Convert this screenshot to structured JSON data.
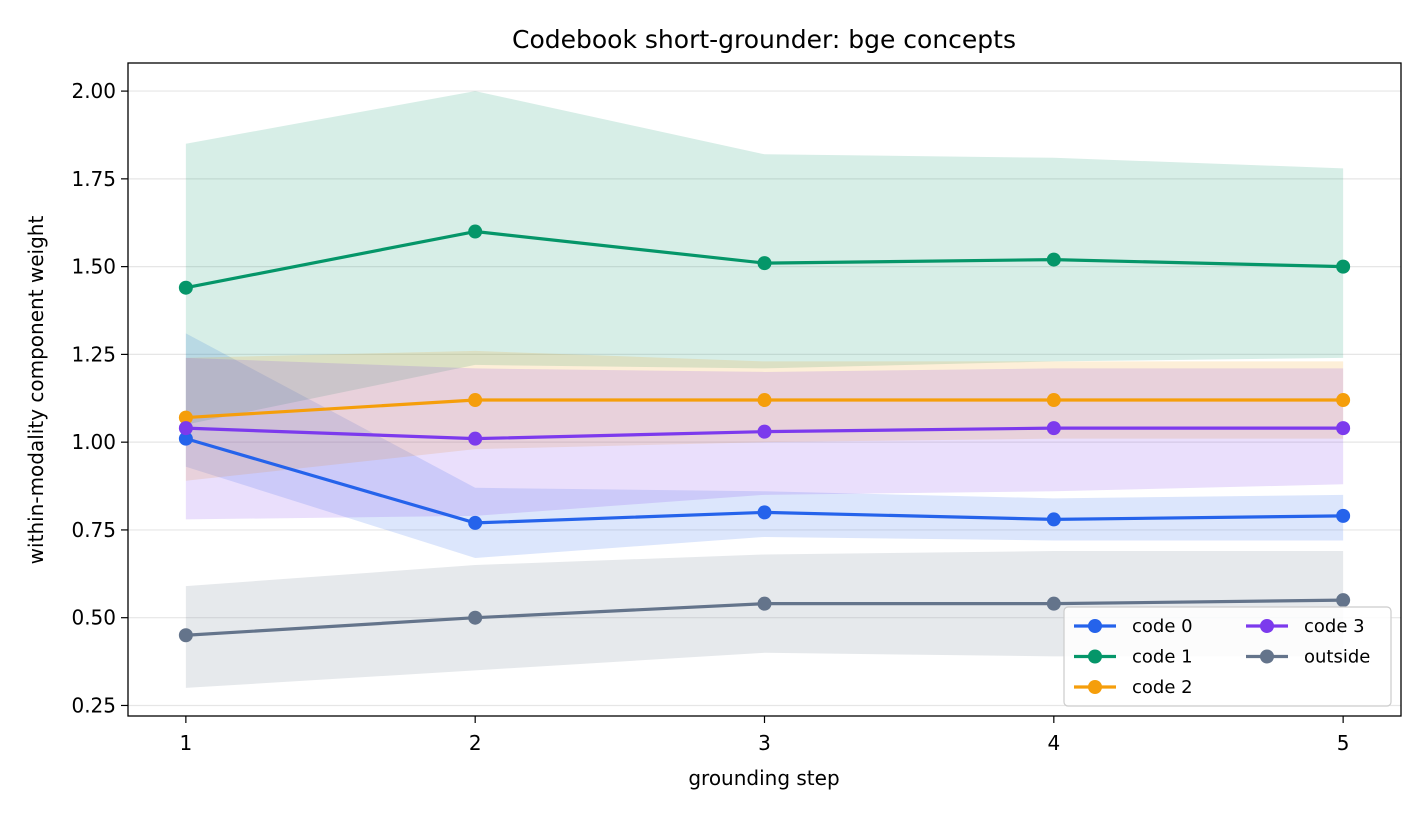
{
  "chart_data": {
    "type": "line",
    "title": "Codebook short-grounder: bge concepts",
    "xlabel": "grounding step",
    "ylabel": "within-modality component weight",
    "x": [
      1,
      2,
      3,
      4,
      5
    ],
    "x_ticks": [
      "1",
      "2",
      "3",
      "4",
      "5"
    ],
    "y_ticks": [
      "0.25",
      "0.50",
      "0.75",
      "1.00",
      "1.25",
      "1.50",
      "1.75",
      "2.00"
    ],
    "ylim": [
      0.22,
      2.08
    ],
    "xlim": [
      0.8,
      5.2
    ],
    "grid": "horizontal",
    "legend": {
      "placement": "lower-right",
      "columns": 2
    },
    "series": [
      {
        "name": "code 0",
        "color": "#2563eb",
        "values": [
          1.01,
          0.77,
          0.8,
          0.78,
          0.79
        ],
        "band_low": [
          0.93,
          0.67,
          0.73,
          0.72,
          0.72
        ],
        "band_high": [
          1.31,
          0.87,
          0.86,
          0.84,
          0.85
        ]
      },
      {
        "name": "code 1",
        "color": "#059669",
        "values": [
          1.44,
          1.6,
          1.51,
          1.52,
          1.5
        ],
        "band_low": [
          1.05,
          1.22,
          1.21,
          1.23,
          1.24
        ],
        "band_high": [
          1.85,
          2.0,
          1.82,
          1.81,
          1.78
        ]
      },
      {
        "name": "code 2",
        "color": "#f59e0b",
        "values": [
          1.07,
          1.12,
          1.12,
          1.12,
          1.12
        ],
        "band_low": [
          0.89,
          0.98,
          1.0,
          1.01,
          1.01
        ],
        "band_high": [
          1.24,
          1.26,
          1.23,
          1.23,
          1.23
        ]
      },
      {
        "name": "code 3",
        "color": "#7c3aed",
        "values": [
          1.04,
          1.01,
          1.03,
          1.04,
          1.04
        ],
        "band_low": [
          0.78,
          0.79,
          0.85,
          0.86,
          0.88
        ],
        "band_high": [
          1.24,
          1.21,
          1.2,
          1.21,
          1.21
        ]
      },
      {
        "name": "outside",
        "color": "#64748b",
        "values": [
          0.45,
          0.5,
          0.54,
          0.54,
          0.55
        ],
        "band_low": [
          0.3,
          0.35,
          0.4,
          0.39,
          0.39
        ],
        "band_high": [
          0.59,
          0.65,
          0.68,
          0.69,
          0.69
        ]
      }
    ]
  }
}
